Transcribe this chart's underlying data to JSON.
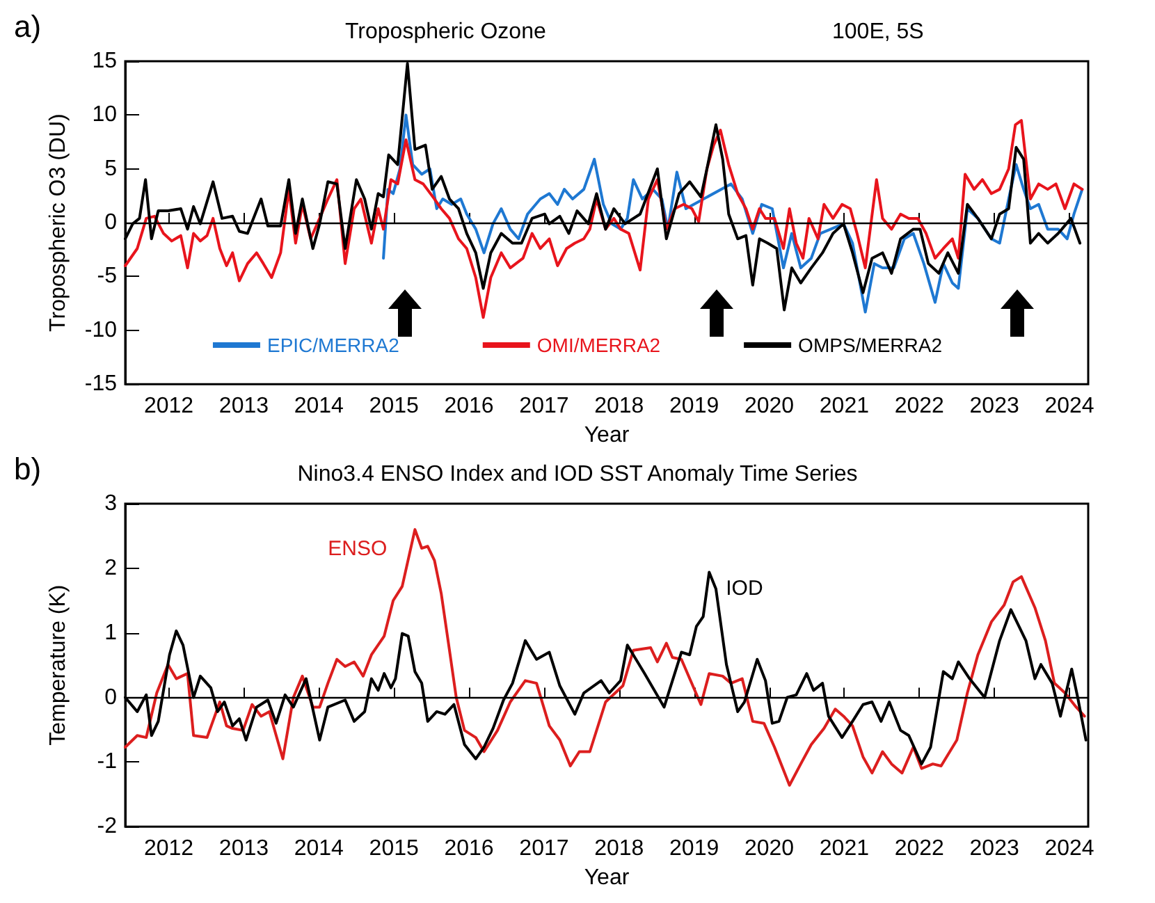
{
  "chart_data": [
    {
      "type": "line",
      "title": "Tropospheric Ozone",
      "subtitle": "100E, 5S",
      "xlabel": "Year",
      "ylabel": "Tropospheric O3 (DU)",
      "annotations": [
        "a)"
      ],
      "xlim": [
        2011.42,
        2024.25
      ],
      "xticks": [
        2012,
        2013,
        2014,
        2015,
        2016,
        2017,
        2018,
        2019,
        2020,
        2021,
        2022,
        2023,
        2024
      ],
      "ylim": [
        -15,
        15
      ],
      "yticks": [
        -15,
        -10,
        -5,
        0,
        5,
        10,
        15
      ],
      "grid": false,
      "legend": "bottom",
      "ref_lines": [
        {
          "axis": "y",
          "value": 0
        }
      ],
      "series": [
        {
          "name": "EPIC/MERRA2",
          "color": "#1e78d2",
          "x": [
            2014.86,
            2014.92,
            2014.99,
            2015.08,
            2015.16,
            2015.25,
            2015.37,
            2015.48,
            2015.57,
            2015.65,
            2015.77,
            2015.89,
            2015.97,
            2016.09,
            2016.2,
            2016.32,
            2016.43,
            2016.55,
            2016.66,
            2016.78,
            2016.95,
            2017.07,
            2017.18,
            2017.27,
            2017.38,
            2017.53,
            2017.67,
            2017.79,
            2017.9,
            2018.02,
            2018.11,
            2018.19,
            2018.31,
            2018.45,
            2018.57,
            2018.65,
            2018.77,
            2018.89,
            2019.49,
            2019.64,
            2019.78,
            2019.9,
            2020.04,
            2020.19,
            2020.3,
            2020.42,
            2020.56,
            2020.68,
            2020.82,
            2020.99,
            2021.11,
            2021.28,
            2021.4,
            2021.51,
            2021.66,
            2021.8,
            2021.92,
            2022.06,
            2022.21,
            2022.32,
            2022.44,
            2022.52,
            2022.64,
            2022.78,
            2022.96,
            2023.07,
            2023.19,
            2023.29,
            2023.39,
            2023.48,
            2023.59,
            2023.71,
            2023.85,
            2023.97,
            2024.06,
            2024.17
          ],
          "values": [
            -3.3,
            3.1,
            2.7,
            5,
            10,
            5.4,
            4.5,
            5,
            1.3,
            2.2,
            1.7,
            2.2,
            0.8,
            -0.6,
            -2.8,
            -0.1,
            1.3,
            -0.6,
            -1.5,
            0.8,
            2.2,
            2.7,
            1.7,
            3.1,
            2.2,
            3.1,
            5.9,
            1.7,
            -0.1,
            -0.6,
            0.4,
            4,
            2.2,
            3.1,
            2.2,
            -0.6,
            4.7,
            1.3,
            3.6,
            2.2,
            -1,
            1.7,
            1.3,
            -4.2,
            -1,
            -4.2,
            -3.3,
            -1,
            -0.6,
            -0.1,
            -1.9,
            -8.3,
            -3.8,
            -4.2,
            -4.2,
            -1.5,
            -1,
            -3.8,
            -7.4,
            -3.8,
            -5.6,
            -6.1,
            1.3,
            0.4,
            -1.5,
            -1.9,
            2.2,
            5.4,
            3.1,
            1.3,
            1.7,
            -0.6,
            -0.6,
            -1.5,
            0.8,
            3.1
          ]
        },
        {
          "name": "OMI/MERRA2",
          "color": "#e8141c",
          "x": [
            2011.42,
            2011.58,
            2011.7,
            2011.81,
            2011.93,
            2012.04,
            2012.16,
            2012.25,
            2012.33,
            2012.42,
            2012.51,
            2012.59,
            2012.68,
            2012.77,
            2012.85,
            2012.94,
            2013.05,
            2013.17,
            2013.26,
            2013.37,
            2013.49,
            2013.6,
            2013.69,
            2013.78,
            2013.89,
            2014.01,
            2014.12,
            2014.24,
            2014.35,
            2014.47,
            2014.56,
            2014.7,
            2014.79,
            2014.86,
            2014.96,
            2015.05,
            2015.16,
            2015.28,
            2015.39,
            2015.54,
            2015.63,
            2015.74,
            2015.86,
            2015.97,
            2016.09,
            2016.19,
            2016.29,
            2016.43,
            2016.55,
            2016.72,
            2016.84,
            2016.95,
            2017.07,
            2017.18,
            2017.3,
            2017.41,
            2017.53,
            2017.61,
            2017.7,
            2017.82,
            2017.93,
            2018.02,
            2018.13,
            2018.28,
            2018.39,
            2018.51,
            2018.63,
            2018.74,
            2018.86,
            2018.97,
            2019.06,
            2019.17,
            2019.26,
            2019.35,
            2019.46,
            2019.58,
            2019.69,
            2019.78,
            2019.87,
            2019.95,
            2020.07,
            2020.19,
            2020.27,
            2020.36,
            2020.45,
            2020.53,
            2020.65,
            2020.73,
            2020.85,
            2020.97,
            2021.08,
            2021.17,
            2021.28,
            2021.43,
            2021.51,
            2021.63,
            2021.75,
            2021.86,
            2021.98,
            2022.09,
            2022.21,
            2022.32,
            2022.44,
            2022.52,
            2022.61,
            2022.73,
            2022.84,
            2022.96,
            2023.07,
            2023.19,
            2023.28,
            2023.36,
            2023.48,
            2023.59,
            2023.71,
            2023.82,
            2023.94,
            2024.06,
            2024.17
          ],
          "values": [
            -4,
            -2.4,
            0.4,
            0.6,
            -1,
            -1.7,
            -1.2,
            -4.2,
            -1,
            -1.7,
            -1.2,
            0.4,
            -2.4,
            -4,
            -2.8,
            -5.4,
            -3.8,
            -2.8,
            -3.8,
            -5.1,
            -2.8,
            3.1,
            -1.9,
            1.7,
            -1.5,
            0.4,
            2.2,
            4,
            -3.8,
            1.3,
            2.2,
            -1.9,
            1.3,
            -0.6,
            4,
            3.6,
            7.7,
            4,
            3.6,
            2.2,
            1.3,
            0.4,
            -1.5,
            -2.4,
            -5.1,
            -8.8,
            -5.1,
            -2.8,
            -4.2,
            -3.3,
            -1,
            -2.4,
            -1.5,
            -4,
            -2.4,
            -1.9,
            -1.5,
            -0.6,
            2.2,
            -0.6,
            0.4,
            -0.6,
            -1,
            -4.4,
            2.2,
            4,
            -0.6,
            1.3,
            1.7,
            1.3,
            0.1,
            5,
            7.2,
            8.6,
            5.4,
            2.7,
            1.3,
            -0.6,
            1.3,
            0.4,
            0.4,
            -2.4,
            1.3,
            -1.9,
            -3.3,
            0.4,
            -1.5,
            1.7,
            0.4,
            1.7,
            1.3,
            -1,
            -4.2,
            4,
            0.4,
            -0.6,
            0.8,
            0.4,
            0.4,
            -1,
            -3.3,
            -2.4,
            -1.5,
            -3.3,
            4.5,
            3.1,
            4,
            2.7,
            3.1,
            5,
            9.1,
            9.5,
            2.2,
            3.6,
            3.1,
            3.6,
            1.3,
            3.6,
            3.1
          ]
        },
        {
          "name": "OMPS/MERRA2",
          "color": "#000000",
          "x": [
            2011.42,
            2011.52,
            2011.61,
            2011.69,
            2011.77,
            2011.86,
            2011.99,
            2012.16,
            2012.25,
            2012.33,
            2012.42,
            2012.59,
            2012.71,
            2012.85,
            2012.94,
            2013.05,
            2013.23,
            2013.32,
            2013.49,
            2013.6,
            2013.69,
            2013.78,
            2013.92,
            2014.01,
            2014.12,
            2014.24,
            2014.35,
            2014.5,
            2014.61,
            2014.7,
            2014.79,
            2014.86,
            2014.93,
            2015.05,
            2015.18,
            2015.28,
            2015.42,
            2015.51,
            2015.63,
            2015.74,
            2015.86,
            2015.97,
            2016.09,
            2016.19,
            2016.29,
            2016.43,
            2016.58,
            2016.7,
            2016.84,
            2017.01,
            2017.07,
            2017.21,
            2017.33,
            2017.44,
            2017.59,
            2017.7,
            2017.82,
            2017.93,
            2018.08,
            2018.28,
            2018.51,
            2018.63,
            2018.8,
            2018.94,
            2019.09,
            2019.17,
            2019.29,
            2019.38,
            2019.46,
            2019.58,
            2019.69,
            2019.78,
            2019.87,
            2019.98,
            2020.1,
            2020.2,
            2020.3,
            2020.42,
            2020.56,
            2020.71,
            2020.85,
            2020.99,
            2021.11,
            2021.25,
            2021.37,
            2021.51,
            2021.63,
            2021.75,
            2021.92,
            2022.01,
            2022.12,
            2022.26,
            2022.38,
            2022.52,
            2022.64,
            2022.78,
            2022.96,
            2023.07,
            2023.19,
            2023.29,
            2023.39,
            2023.48,
            2023.59,
            2023.71,
            2023.85,
            2024.02,
            2024.14
          ],
          "values": [
            -1.5,
            -0.1,
            0.4,
            4,
            -1.5,
            1.1,
            1.1,
            1.3,
            -0.6,
            1.5,
            -0.1,
            3.8,
            0.4,
            0.6,
            -0.8,
            -1,
            2.2,
            -0.3,
            -0.3,
            4,
            -1,
            2.2,
            -2.4,
            -0.1,
            3.8,
            3.6,
            -2.4,
            4,
            2.2,
            -0.6,
            2.7,
            2.4,
            6.3,
            5.4,
            14.8,
            6.8,
            7.2,
            3.1,
            4.3,
            2.2,
            1.3,
            -1,
            -2.8,
            -6.1,
            -2.8,
            -1,
            -1.9,
            -1.9,
            0.4,
            0.8,
            -0.1,
            0.6,
            -1,
            1.1,
            -0.1,
            2.7,
            -0.6,
            1.3,
            -0.1,
            0.8,
            5,
            -1.5,
            2.7,
            3.8,
            2.4,
            5,
            9.1,
            5.9,
            0.8,
            -1.5,
            -1.2,
            -5.8,
            -1.5,
            -1.9,
            -2.4,
            -8.1,
            -4.2,
            -5.6,
            -4.2,
            -2.8,
            -1,
            -0.1,
            -2.8,
            -6.5,
            -3.3,
            -2.8,
            -4.7,
            -1.5,
            -0.6,
            -0.6,
            -3.8,
            -4.7,
            -2.8,
            -4.7,
            1.7,
            0.4,
            -1.5,
            0.8,
            1.3,
            7,
            5.9,
            -1.9,
            -1,
            -1.9,
            -1,
            0.4,
            -1.9
          ]
        }
      ]
    },
    {
      "type": "line",
      "title": "Nino3.4 ENSO Index and IOD SST Anomaly Time Series",
      "xlabel": "Year",
      "ylabel": "Temperature (K)",
      "annotations": [
        "b)"
      ],
      "xlim": [
        2011.42,
        2024.25
      ],
      "xticks": [
        2012,
        2013,
        2014,
        2015,
        2016,
        2017,
        2018,
        2019,
        2020,
        2021,
        2022,
        2023,
        2024
      ],
      "ylim": [
        -2,
        3
      ],
      "yticks": [
        -2,
        -1,
        0,
        1,
        2,
        3
      ],
      "grid": false,
      "legend": false,
      "ref_lines": [
        {
          "axis": "y",
          "value": 0
        }
      ],
      "series": [
        {
          "name": "ENSO",
          "color": "#dc1e1e",
          "x": [
            2011.42,
            2011.58,
            2011.7,
            2011.84,
            2011.99,
            2012.1,
            2012.25,
            2012.33,
            2012.51,
            2012.68,
            2012.77,
            2012.85,
            2012.99,
            2013.11,
            2013.23,
            2013.34,
            2013.52,
            2013.66,
            2013.78,
            2013.92,
            2014.01,
            2014.12,
            2014.24,
            2014.35,
            2014.47,
            2014.59,
            2014.7,
            2014.87,
            2014.99,
            2015.11,
            2015.28,
            2015.37,
            2015.45,
            2015.54,
            2015.63,
            2015.74,
            2015.83,
            2015.94,
            2016.09,
            2016.2,
            2016.38,
            2016.55,
            2016.75,
            2016.9,
            2017.07,
            2017.21,
            2017.35,
            2017.47,
            2017.61,
            2017.82,
            2018.05,
            2018.19,
            2018.42,
            2018.51,
            2018.63,
            2018.71,
            2018.83,
            2019.09,
            2019.2,
            2019.38,
            2019.49,
            2019.64,
            2019.78,
            2019.93,
            2020.07,
            2020.27,
            2020.42,
            2020.56,
            2020.73,
            2020.88,
            2020.99,
            2021.11,
            2021.25,
            2021.37,
            2021.51,
            2021.63,
            2021.77,
            2021.92,
            2022.03,
            2022.18,
            2022.29,
            2022.5,
            2022.64,
            2022.78,
            2022.96,
            2023.13,
            2023.25,
            2023.36,
            2023.54,
            2023.68,
            2023.8,
            2023.94,
            2024.09,
            2024.2
          ],
          "values": [
            -0.77,
            -0.59,
            -0.62,
            0.07,
            0.51,
            0.29,
            0.37,
            -0.59,
            -0.62,
            -0.07,
            -0.44,
            -0.48,
            -0.51,
            -0.11,
            -0.29,
            -0.22,
            -0.95,
            0,
            0.33,
            -0.15,
            -0.15,
            0.22,
            0.59,
            0.48,
            0.55,
            0.33,
            0.66,
            0.95,
            1.5,
            1.72,
            2.6,
            2.31,
            2.34,
            2.12,
            1.61,
            0.73,
            0,
            -0.51,
            -0.62,
            -0.84,
            -0.51,
            -0.07,
            0.26,
            0.22,
            -0.44,
            -0.66,
            -1.06,
            -0.84,
            -0.84,
            -0.07,
            0.18,
            0.73,
            0.77,
            0.55,
            0.84,
            0.62,
            0.59,
            -0.11,
            0.37,
            0.33,
            0.22,
            0.29,
            -0.37,
            -0.4,
            -0.77,
            -1.36,
            -1.03,
            -0.73,
            -0.48,
            -0.18,
            -0.29,
            -0.44,
            -0.92,
            -1.17,
            -0.84,
            -1.03,
            -1.17,
            -0.77,
            -1.1,
            -1.03,
            -1.06,
            -0.66,
            0.07,
            0.66,
            1.17,
            1.43,
            1.79,
            1.87,
            1.39,
            0.88,
            0.22,
            0.07,
            -0.15,
            -0.29
          ]
        },
        {
          "name": "IOD",
          "color": "#000000",
          "x": [
            2011.42,
            2011.58,
            2011.7,
            2011.77,
            2011.86,
            2012.01,
            2012.1,
            2012.19,
            2012.33,
            2012.42,
            2012.56,
            2012.65,
            2012.74,
            2012.85,
            2012.94,
            2013.03,
            2013.17,
            2013.32,
            2013.43,
            2013.55,
            2013.66,
            2013.83,
            2014.01,
            2014.12,
            2014.35,
            2014.47,
            2014.61,
            2014.7,
            2014.79,
            2014.87,
            2014.96,
            2015.02,
            2015.11,
            2015.19,
            2015.28,
            2015.37,
            2015.45,
            2015.57,
            2015.68,
            2015.8,
            2015.94,
            2016.09,
            2016.2,
            2016.32,
            2016.46,
            2016.58,
            2016.75,
            2016.9,
            2017.07,
            2017.21,
            2017.41,
            2017.53,
            2017.76,
            2017.87,
            2018.02,
            2018.11,
            2018.34,
            2018.6,
            2018.83,
            2018.94,
            2019.03,
            2019.12,
            2019.2,
            2019.29,
            2019.43,
            2019.58,
            2019.67,
            2019.84,
            2019.95,
            2020.04,
            2020.13,
            2020.24,
            2020.36,
            2020.5,
            2020.59,
            2020.71,
            2020.79,
            2020.97,
            2021.11,
            2021.25,
            2021.37,
            2021.49,
            2021.6,
            2021.75,
            2021.86,
            2022.03,
            2022.15,
            2022.32,
            2022.44,
            2022.52,
            2022.67,
            2022.87,
            2023.07,
            2023.22,
            2023.42,
            2023.54,
            2023.62,
            2023.77,
            2023.88,
            2024.03,
            2024.11,
            2024.22
          ],
          "values": [
            0,
            -0.22,
            0.04,
            -0.59,
            -0.37,
            0.66,
            1.03,
            0.81,
            0,
            0.33,
            0.15,
            -0.22,
            -0.07,
            -0.44,
            -0.33,
            -0.66,
            -0.15,
            -0.04,
            -0.4,
            0.04,
            -0.15,
            0.29,
            -0.66,
            -0.15,
            -0.04,
            -0.37,
            -0.22,
            0.29,
            0.11,
            0.37,
            0.15,
            0.29,
            0.99,
            0.95,
            0.4,
            0.22,
            -0.37,
            -0.22,
            -0.26,
            -0.11,
            -0.73,
            -0.95,
            -0.77,
            -0.48,
            -0.04,
            0.22,
            0.88,
            0.59,
            0.7,
            0.18,
            -0.26,
            0.07,
            0.26,
            0.07,
            0.26,
            0.81,
            0.37,
            -0.15,
            0.7,
            0.66,
            1.1,
            1.25,
            1.94,
            1.68,
            0.51,
            -0.22,
            -0.07,
            0.59,
            0.26,
            -0.4,
            -0.37,
            0,
            0.04,
            0.37,
            0.11,
            0.22,
            -0.29,
            -0.62,
            -0.37,
            -0.11,
            -0.07,
            -0.37,
            -0.07,
            -0.51,
            -0.59,
            -1.03,
            -0.77,
            0.4,
            0.29,
            0.55,
            0.29,
            0,
            0.88,
            1.36,
            0.88,
            0.29,
            0.51,
            0.22,
            -0.29,
            0.44,
            0,
            -0.66
          ]
        }
      ]
    }
  ]
}
